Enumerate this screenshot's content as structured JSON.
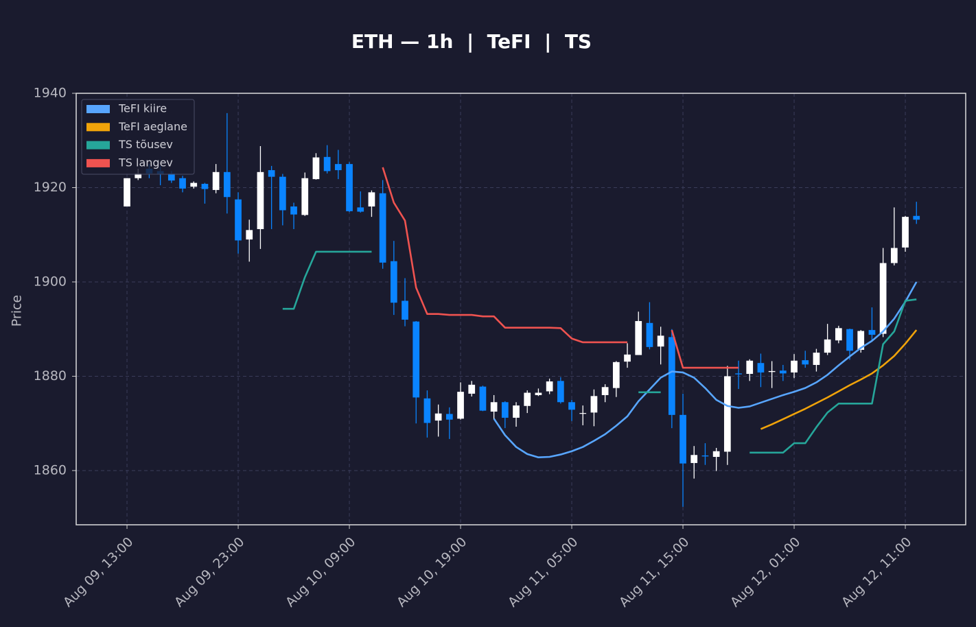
{
  "chart_data": {
    "type": "candlestick",
    "title": "ETH — 1h  |  TeFI  |  TS",
    "ylabel": "Price",
    "categories": [
      "Aug 09, 13:00",
      null,
      null,
      null,
      null,
      null,
      null,
      null,
      null,
      null,
      "Aug 09, 23:00",
      null,
      null,
      null,
      null,
      null,
      null,
      null,
      null,
      null,
      "Aug 10, 09:00",
      null,
      null,
      null,
      null,
      null,
      null,
      null,
      null,
      null,
      "Aug 10, 19:00",
      null,
      null,
      null,
      null,
      null,
      null,
      null,
      null,
      null,
      "Aug 11, 05:00",
      null,
      null,
      null,
      null,
      null,
      null,
      null,
      null,
      null,
      "Aug 11, 15:00",
      null,
      null,
      null,
      null,
      null,
      null,
      null,
      null,
      null,
      "Aug 12, 01:00",
      null,
      null,
      null,
      null,
      null,
      null,
      null,
      null,
      null,
      "Aug 12, 11:00",
      null
    ],
    "open": [
      1916,
      1922,
      1924,
      1923.5,
      1923,
      1922,
      1920.2,
      1920.8,
      1919.5,
      1923.3,
      1917.5,
      1909,
      1911.2,
      1923.7,
      1922.3,
      1916,
      1914.2,
      1921.8,
      1926.5,
      1925,
      1925,
      1915.8,
      1916,
      1918.8,
      1904.4,
      1896,
      1891.6,
      1875.3,
      1870.6,
      1872,
      1871,
      1876.3,
      1877.8,
      1872.5,
      1874.5,
      1871.2,
      1873.7,
      1876,
      1876.8,
      1879,
      1874.5,
      1872.1,
      1872.3,
      1876,
      1877.5,
      1883.1,
      1884.5,
      1891.3,
      1886.3,
      1888.3,
      1871.8,
      1861.6,
      1863.2,
      1862.9,
      1864,
      1880.6,
      1880.5,
      1882.8,
      1880.9,
      1881.2,
      1880.8,
      1883.4,
      1882.4,
      1885,
      1887.6,
      1890,
      1885.6,
      1889.8,
      1889,
      1904,
      1907.3,
      1914
    ],
    "high": [
      1922,
      1924,
      1925,
      1924.5,
      1923.5,
      1922.5,
      1921.3,
      1921,
      1925,
      1935.8,
      1919,
      1913.2,
      1928.8,
      1924.6,
      1922.9,
      1916.8,
      1923.2,
      1927.3,
      1929,
      1928,
      1925.4,
      1919.2,
      1919.4,
      1921.6,
      1908.7,
      1900.8,
      1891.7,
      1877,
      1874,
      1873.4,
      1878.7,
      1879,
      1878,
      1876,
      1874.7,
      1874.5,
      1877,
      1877.4,
      1879.5,
      1879.8,
      1875,
      1873.8,
      1877.2,
      1878.3,
      1883.2,
      1887,
      1893.7,
      1895.7,
      1890.5,
      1890,
      1876.3,
      1865.2,
      1865.8,
      1864.8,
      1882.2,
      1883.3,
      1883.6,
      1884.8,
      1883.2,
      1882.4,
      1884.7,
      1885.4,
      1885.8,
      1891.1,
      1890.7,
      1890.1,
      1889.8,
      1894.6,
      1907.2,
      1915.8,
      1914,
      1917
    ],
    "low": [
      1916,
      1921.6,
      1922,
      1920.5,
      1921,
      1919,
      1919.8,
      1916.6,
      1918.8,
      1914.5,
      1906,
      1904.3,
      1907,
      1911.2,
      1912,
      1911.2,
      1914,
      1921.7,
      1923,
      1921.8,
      1914.8,
      1914.7,
      1913.8,
      1902.8,
      1893,
      1890.6,
      1870,
      1867,
      1867.2,
      1866.7,
      1870.8,
      1875.7,
      1872.6,
      1870.8,
      1869,
      1869.3,
      1872.2,
      1875.8,
      1876.2,
      1874.2,
      1870.5,
      1869.6,
      1869.4,
      1874.5,
      1875.6,
      1881.8,
      1884.5,
      1885.7,
      1882.5,
      1869,
      1852.3,
      1858.3,
      1861.2,
      1859.9,
      1861.2,
      1877.3,
      1879,
      1877.7,
      1877.5,
      1879,
      1879.6,
      1881.8,
      1881,
      1884.5,
      1887,
      1883.5,
      1885,
      1887.5,
      1888.3,
      1903.5,
      1906.4,
      1912.3
    ],
    "close": [
      1922,
      1923,
      1923,
      1922.8,
      1921.5,
      1919.8,
      1921,
      1919.7,
      1923.3,
      1918,
      1908.8,
      1911,
      1923.3,
      1922.3,
      1915.2,
      1914.3,
      1922,
      1926.4,
      1923.5,
      1923.7,
      1915,
      1914.9,
      1919,
      1904.1,
      1895.6,
      1892,
      1875.5,
      1870.1,
      1872.1,
      1870.8,
      1876.7,
      1878.2,
      1872.7,
      1874.5,
      1871.2,
      1873.8,
      1876.5,
      1876.5,
      1878.9,
      1874.5,
      1872.9,
      1872.2,
      1875.8,
      1877.7,
      1883,
      1884.6,
      1891.7,
      1886.2,
      1888.6,
      1871.8,
      1861.5,
      1863.3,
      1863,
      1864.1,
      1880,
      1880.4,
      1883.3,
      1880.8,
      1881.1,
      1880.6,
      1883.3,
      1882.5,
      1885,
      1887.8,
      1890.2,
      1885.4,
      1889.6,
      1888.8,
      1904,
      1907.2,
      1913.8,
      1913.2
    ],
    "up_color": "#ffffff",
    "down_color": "#0a84ff",
    "series": [
      {
        "name": "TeFI kiire",
        "color": "#58a6ff",
        "values": [
          null,
          null,
          null,
          null,
          null,
          null,
          null,
          null,
          null,
          null,
          null,
          null,
          null,
          null,
          null,
          null,
          null,
          null,
          null,
          null,
          null,
          null,
          null,
          null,
          null,
          null,
          null,
          null,
          null,
          null,
          null,
          null,
          null,
          1871,
          1867.5,
          1865,
          1863.5,
          1862.8,
          1862.9,
          1863.4,
          1864.1,
          1865,
          1866.3,
          1867.7,
          1869.5,
          1871.5,
          1874.7,
          1877.2,
          1879.7,
          1881,
          1880.8,
          1879.7,
          1877.5,
          1875,
          1873.7,
          1873.3,
          1873.6,
          1874.4,
          1875.2,
          1876,
          1876.7,
          1877.5,
          1878.7,
          1880.3,
          1882.3,
          1884.2,
          1886,
          1887.5,
          1889.5,
          1892.2,
          1895.8,
          1900
        ]
      },
      {
        "name": "TeFI aeglane",
        "color": "#f0a30a",
        "values": [
          null,
          null,
          null,
          null,
          null,
          null,
          null,
          null,
          null,
          null,
          null,
          null,
          null,
          null,
          null,
          null,
          null,
          null,
          null,
          null,
          null,
          null,
          null,
          null,
          null,
          null,
          null,
          null,
          null,
          null,
          null,
          null,
          null,
          null,
          null,
          null,
          null,
          null,
          null,
          null,
          null,
          null,
          null,
          null,
          null,
          null,
          null,
          null,
          null,
          null,
          null,
          null,
          null,
          null,
          null,
          null,
          null,
          1868.8,
          1869.8,
          1870.9,
          1872,
          1873.1,
          1874.3,
          1875.5,
          1876.8,
          1878.1,
          1879.3,
          1880.6,
          1882.3,
          1884.3,
          1886.9,
          1889.8
        ]
      },
      {
        "name": "TS tõusev",
        "color": "#26a69a",
        "values": [
          null,
          null,
          null,
          null,
          null,
          null,
          null,
          null,
          null,
          null,
          null,
          null,
          null,
          null,
          1894.3,
          1894.3,
          1901,
          1906.4,
          1906.4,
          1906.4,
          1906.4,
          1906.4,
          1906.4,
          null,
          null,
          null,
          null,
          null,
          null,
          null,
          null,
          null,
          null,
          null,
          null,
          null,
          null,
          null,
          null,
          null,
          null,
          null,
          null,
          null,
          null,
          null,
          1876.6,
          1876.6,
          1876.6,
          null,
          null,
          null,
          null,
          null,
          null,
          null,
          1863.8,
          1863.8,
          1863.8,
          1863.8,
          1865.8,
          1865.8,
          1869.2,
          1872.3,
          1874.2,
          1874.2,
          1874.2,
          1874.2,
          1886.8,
          1889.5,
          1896,
          1896.3
        ]
      },
      {
        "name": "TS langev",
        "color": "#ef5350",
        "values": [
          null,
          null,
          null,
          null,
          null,
          null,
          null,
          null,
          null,
          null,
          null,
          null,
          null,
          null,
          null,
          null,
          null,
          null,
          null,
          null,
          null,
          null,
          null,
          1924.3,
          1916.8,
          1913,
          1898.8,
          1893.2,
          1893.2,
          1893,
          1893,
          1893,
          1892.7,
          1892.7,
          1890.3,
          1890.3,
          1890.3,
          1890.3,
          1890.3,
          1890.2,
          1888,
          1887.2,
          1887.2,
          1887.2,
          1887.2,
          1887.2,
          null,
          null,
          null,
          1889.8,
          1881.8,
          1881.8,
          1881.8,
          1881.8,
          1881.8,
          1881.8,
          null,
          null,
          null,
          null,
          null,
          null,
          null,
          null,
          null,
          null,
          null,
          null,
          null,
          null,
          null,
          null
        ]
      }
    ],
    "xlim": [
      -4.57,
      75.43
    ],
    "ylim": [
      1848.5,
      1940
    ],
    "yticks": [
      1860,
      1880,
      1900,
      1920,
      1940
    ],
    "grid": true,
    "legend": "upper left"
  }
}
